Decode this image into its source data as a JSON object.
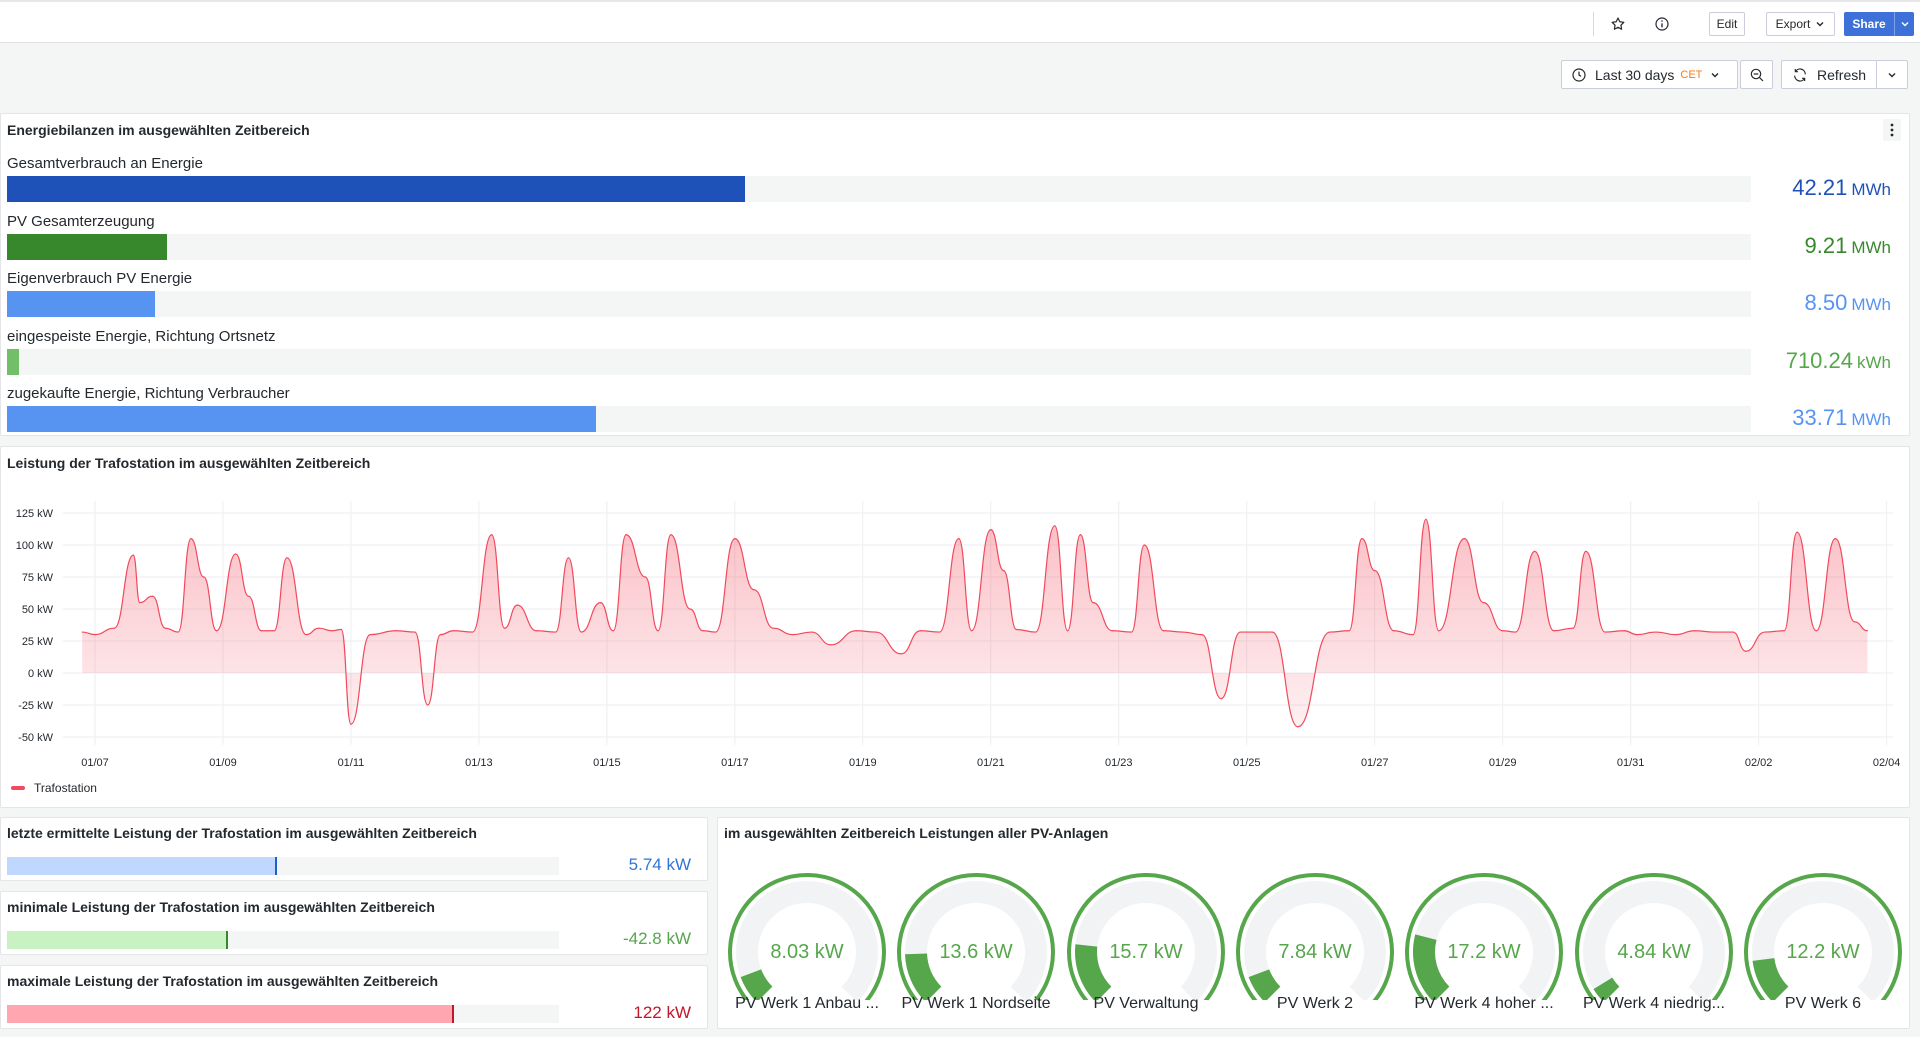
{
  "toolbar": {
    "edit_label": "Edit",
    "export_label": "Export",
    "share_label": "Share"
  },
  "controls": {
    "time_range": "Last 30 days",
    "timezone": "CET",
    "refresh_label": "Refresh"
  },
  "energy_panel": {
    "title": "Energiebilanzen im ausgewählten Zeitbereich",
    "bars": [
      {
        "label": "Gesamtverbrauch an Energie",
        "value": "42.21",
        "unit": "MWh",
        "fill": 0.423,
        "color": "#1f52b8",
        "text_color": "#1f52b8"
      },
      {
        "label": "PV Gesamterzeugung",
        "value": "9.21",
        "unit": "MWh",
        "fill": 0.092,
        "color": "#37872d",
        "text_color": "#37872d"
      },
      {
        "label": "Eigenverbrauch PV Energie",
        "value": "8.50",
        "unit": "MWh",
        "fill": 0.085,
        "color": "#5794f2",
        "text_color": "#5794f2"
      },
      {
        "label": "eingespeiste Energie, Richtung Ortsnetz",
        "value": "710.24",
        "unit": "kWh",
        "fill": 0.007,
        "color": "#73bf69",
        "text_color": "#56a64b"
      },
      {
        "label": "zugekaufte Energie, Richtung Verbraucher",
        "value": "33.71",
        "unit": "MWh",
        "fill": 0.338,
        "color": "#5794f2",
        "text_color": "#5794f2"
      }
    ]
  },
  "trafo_chart": {
    "title": "Leistung der Trafostation im ausgewählten Zeitbereich",
    "legend": "Trafostation"
  },
  "chart_data": {
    "type": "area",
    "title": "Leistung der Trafostation im ausgewählten Zeitbereich",
    "ylim": [
      -50,
      125
    ],
    "y_ticks": [
      "125 kW",
      "100 kW",
      "75 kW",
      "50 kW",
      "25 kW",
      "0 kW",
      "-25 kW",
      "-50 kW"
    ],
    "x_ticks": [
      "01/07",
      "01/09",
      "01/11",
      "01/13",
      "01/15",
      "01/17",
      "01/19",
      "01/21",
      "01/23",
      "01/25",
      "01/27",
      "01/29",
      "01/31",
      "02/02",
      "02/04"
    ],
    "series": [
      {
        "name": "Trafostation",
        "color": "#f2495c",
        "x": [
          6.8,
          7.0,
          7.3,
          7.6,
          7.7,
          7.9,
          8.1,
          8.3,
          8.5,
          8.7,
          8.9,
          9.2,
          9.4,
          9.6,
          9.8,
          10.0,
          10.3,
          10.5,
          10.7,
          10.85,
          11.0,
          11.3,
          11.7,
          12.0,
          12.2,
          12.4,
          12.6,
          12.9,
          13.2,
          13.4,
          13.6,
          13.9,
          14.2,
          14.4,
          14.6,
          14.9,
          15.1,
          15.3,
          15.6,
          15.8,
          16.0,
          16.3,
          16.5,
          16.7,
          17.0,
          17.3,
          17.6,
          17.9,
          18.2,
          18.5,
          18.9,
          19.2,
          19.6,
          19.9,
          20.2,
          20.5,
          20.7,
          21.0,
          21.2,
          21.4,
          21.7,
          22.0,
          22.2,
          22.4,
          22.6,
          22.9,
          23.2,
          23.4,
          23.7,
          24.0,
          24.3,
          24.6,
          24.9,
          25.2,
          25.4,
          25.8,
          26.3,
          26.6,
          26.8,
          27.0,
          27.3,
          27.6,
          27.8,
          28.0,
          28.4,
          28.7,
          29.0,
          29.2,
          29.5,
          29.8,
          30.1,
          30.3,
          30.6,
          30.9,
          31.1,
          31.4,
          31.7,
          32.0,
          32.3,
          32.6,
          32.8,
          33.1,
          33.4,
          33.6,
          33.9,
          34.2,
          34.5,
          34.7
        ],
        "values": [
          32,
          30,
          35,
          92,
          55,
          60,
          35,
          32,
          105,
          75,
          33,
          93,
          60,
          33,
          33,
          90,
          30,
          35,
          33,
          34,
          -40,
          30,
          33,
          32,
          -25,
          30,
          33,
          32,
          108,
          35,
          53,
          33,
          32,
          90,
          32,
          55,
          33,
          108,
          75,
          33,
          108,
          50,
          33,
          32,
          105,
          65,
          35,
          30,
          32,
          22,
          33,
          32,
          15,
          33,
          32,
          105,
          33,
          112,
          80,
          34,
          32,
          115,
          33,
          108,
          55,
          33,
          32,
          100,
          33,
          32,
          30,
          -20,
          32,
          32,
          32,
          -42,
          32,
          33,
          105,
          80,
          33,
          30,
          120,
          33,
          105,
          55,
          33,
          32,
          95,
          33,
          35,
          95,
          32,
          33,
          30,
          32,
          30,
          33,
          32,
          32,
          17,
          32,
          33,
          110,
          33,
          105,
          40,
          33
        ]
      }
    ]
  },
  "last_panel": {
    "title": "letzte ermittelte Leistung der Trafostation im ausgewählten Zeitbereich",
    "value": "5.74 kW",
    "fill": 0.49,
    "color": "#c0d8ff",
    "marker": "#1f60c4",
    "text_color": "#3274d9"
  },
  "min_panel": {
    "title": "minimale Leistung der Trafostation im ausgewählten Zeitbereich",
    "value": "-42.8 kW",
    "fill": 0.4,
    "color": "#c8f2c2",
    "marker": "#37872d",
    "text_color": "#56a64b"
  },
  "max_panel": {
    "title": "maximale Leistung der Trafostation im ausgewählten Zeitbereich",
    "value": "122 kW",
    "fill": 0.81,
    "color": "#ffa6b0",
    "marker": "#c4162a",
    "text_color": "#c4162a"
  },
  "pv_panel": {
    "title": "im ausgewählten Zeitbereich Leistungen aller PV-Anlagen",
    "gauges": [
      {
        "label": "PV Werk 1 Anbau ...",
        "value": "8.03 kW",
        "fraction": 0.09
      },
      {
        "label": "PV Werk 1 Nordseite",
        "value": "13.6 kW",
        "fraction": 0.16
      },
      {
        "label": "PV Verwaltung",
        "value": "15.7 kW",
        "fraction": 0.19
      },
      {
        "label": "PV Werk 2",
        "value": "7.84 kW",
        "fraction": 0.09
      },
      {
        "label": "PV Werk 4 hoher ...",
        "value": "17.2 kW",
        "fraction": 0.22
      },
      {
        "label": "PV Werk 4 niedrig...",
        "value": "4.84 kW",
        "fraction": 0.05
      },
      {
        "label": "PV Werk 6",
        "value": "12.2 kW",
        "fraction": 0.14
      }
    ]
  }
}
